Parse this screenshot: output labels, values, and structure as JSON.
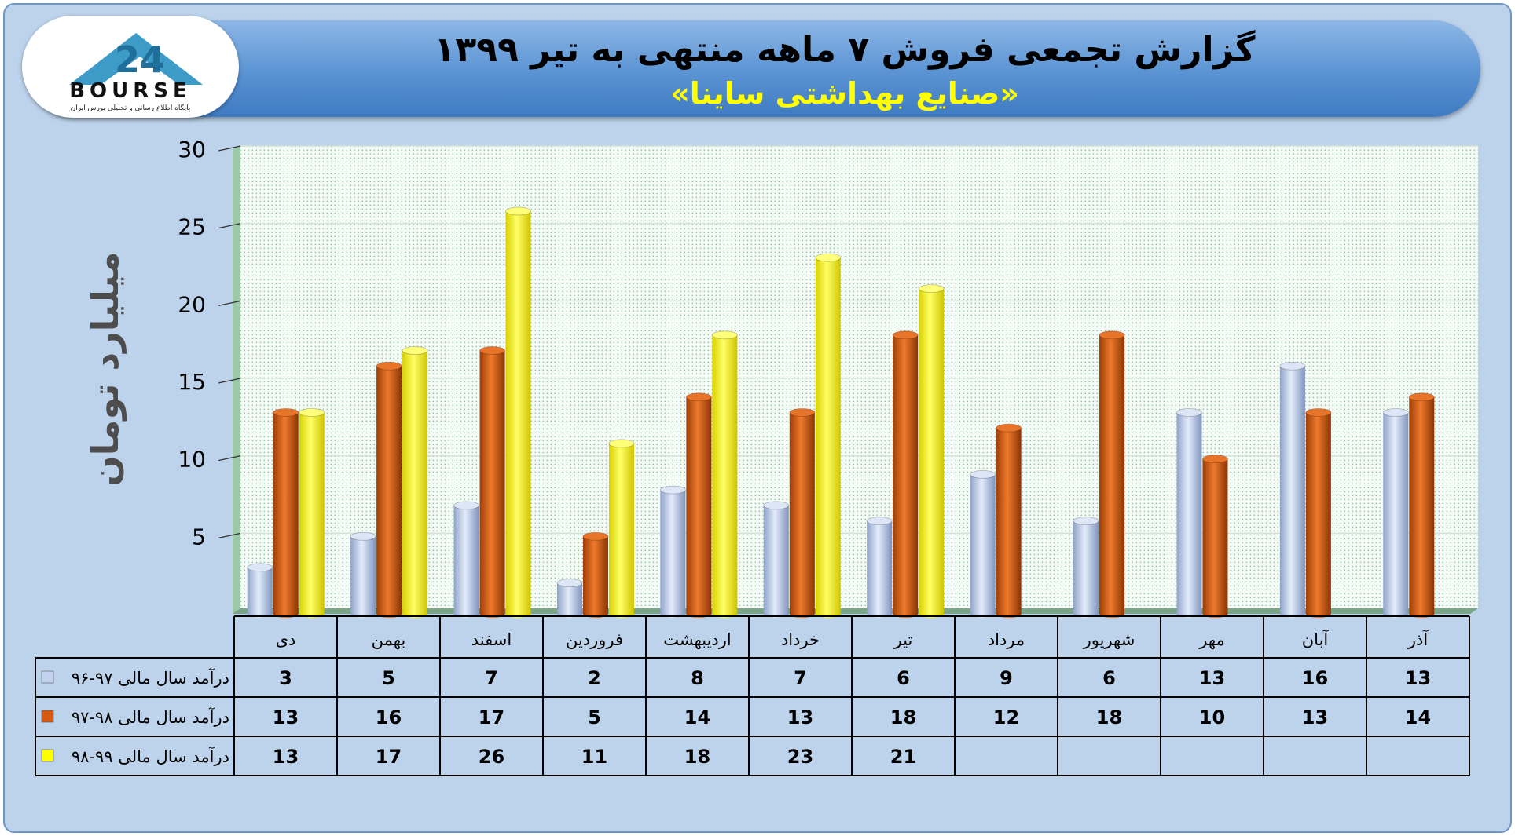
{
  "header": {
    "title": "گزارش تجمعی فروش ۷ ماهه منتهی به تیر ۱۳۹۹",
    "subtitle": "«صنایع بهداشتی ساینا»"
  },
  "logo": {
    "icon": "bourse24-logo-icon",
    "brand": "BOURSE",
    "number": "24",
    "tagline": "پایگاه اطلاع رسانی و تحلیلی بورس ایران"
  },
  "colors": {
    "series_1": "#c3d2ef",
    "series_2": "#d65a10",
    "series_3": "#ffff00",
    "banner": "#5a93d3",
    "background": "#bdd3ec"
  },
  "chart_data": {
    "type": "bar",
    "ylabel": "میلیارد تومان",
    "ylim": [
      0,
      30
    ],
    "yticks": [
      5,
      10,
      15,
      20,
      25,
      30
    ],
    "ytick_labels": [
      "5",
      "10",
      "15",
      "20",
      "25",
      "30"
    ],
    "grid": true,
    "legend_position": "data-table-left",
    "categories": [
      "دی",
      "بهمن",
      "اسفند",
      "فروردین",
      "اردیبهشت",
      "خرداد",
      "تیر",
      "مرداد",
      "شهریور",
      "مهر",
      "آبان",
      "آذر"
    ],
    "series": [
      {
        "name": "درآمد سال مالی ۹۷-۹۶",
        "color": "#c3d2ef",
        "values": [
          3,
          5,
          7,
          2,
          8,
          7,
          6,
          9,
          6,
          13,
          16,
          13
        ]
      },
      {
        "name": "درآمد سال مالی ۹۸-۹۷",
        "color": "#d65a10",
        "values": [
          13,
          16,
          17,
          5,
          14,
          13,
          18,
          12,
          18,
          10,
          13,
          14
        ]
      },
      {
        "name": "درآمد سال مالی ۹۹-۹۸",
        "color": "#ffff00",
        "values": [
          13,
          17,
          26,
          11,
          18,
          23,
          21,
          null,
          null,
          null,
          null,
          null
        ]
      }
    ],
    "table_values": [
      [
        "3",
        "5",
        "7",
        "2",
        "8",
        "7",
        "6",
        "9",
        "6",
        "13",
        "16",
        "13"
      ],
      [
        "13",
        "16",
        "17",
        "5",
        "14",
        "13",
        "18",
        "12",
        "18",
        "10",
        "13",
        "14"
      ],
      [
        "13",
        "17",
        "26",
        "11",
        "18",
        "23",
        "21",
        "",
        "",
        "",
        "",
        ""
      ]
    ]
  }
}
